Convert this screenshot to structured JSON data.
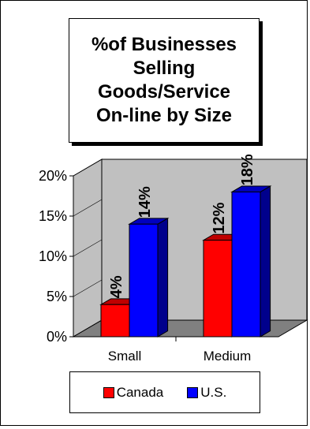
{
  "chart_data": {
    "type": "bar",
    "title": "%of Businesses\nSelling\nGoods/Service\nOn-line by Size",
    "categories": [
      "Small",
      "Medium"
    ],
    "series": [
      {
        "name": "Canada",
        "values": [
          4,
          12
        ],
        "labels": [
          "4%",
          "12%"
        ],
        "color": "#ff0000"
      },
      {
        "name": "U.S.",
        "values": [
          14,
          18
        ],
        "labels": [
          "14%",
          "18%"
        ],
        "color": "#0000ff"
      }
    ],
    "yticks": [
      0,
      5,
      10,
      15,
      20
    ],
    "ytick_labels": [
      "0%",
      "5%",
      "10%",
      "15%",
      "20%"
    ],
    "ylim": [
      0,
      20
    ],
    "grid": false,
    "legend_position": "bottom",
    "style": "3d-clustered-column"
  }
}
